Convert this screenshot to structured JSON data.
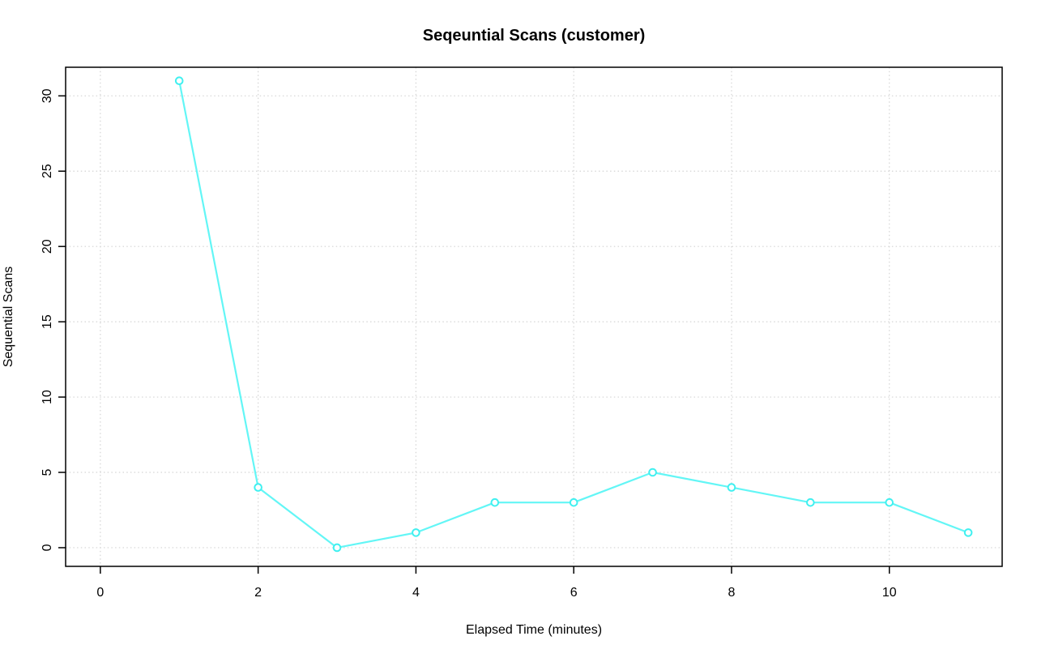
{
  "chart_data": {
    "type": "line",
    "title": "Seqeuntial Scans (customer)",
    "xlabel": "Elapsed Time (minutes)",
    "ylabel": "Sequential Scans",
    "x": [
      1,
      2,
      3,
      4,
      5,
      6,
      7,
      8,
      9,
      10,
      11
    ],
    "y": [
      31,
      4,
      0,
      1,
      3,
      3,
      5,
      4,
      3,
      3,
      1
    ],
    "x_ticks": [
      0,
      2,
      4,
      6,
      8,
      10
    ],
    "y_ticks": [
      0,
      5,
      10,
      15,
      20,
      25,
      30
    ],
    "xlim": [
      -0.44,
      11.43
    ],
    "ylim": [
      -1.24,
      31.9
    ],
    "grid": true,
    "grid_style": "dotted",
    "legend": "none",
    "marker": "open-circle",
    "colors": {
      "line": "#63F6F6",
      "marker_stroke": "#40F0F0",
      "marker_fill": "#FFFFFF",
      "grid": "#D4D4D4",
      "axis": "#000000",
      "text": "#000000",
      "background": "#FFFFFF"
    }
  }
}
